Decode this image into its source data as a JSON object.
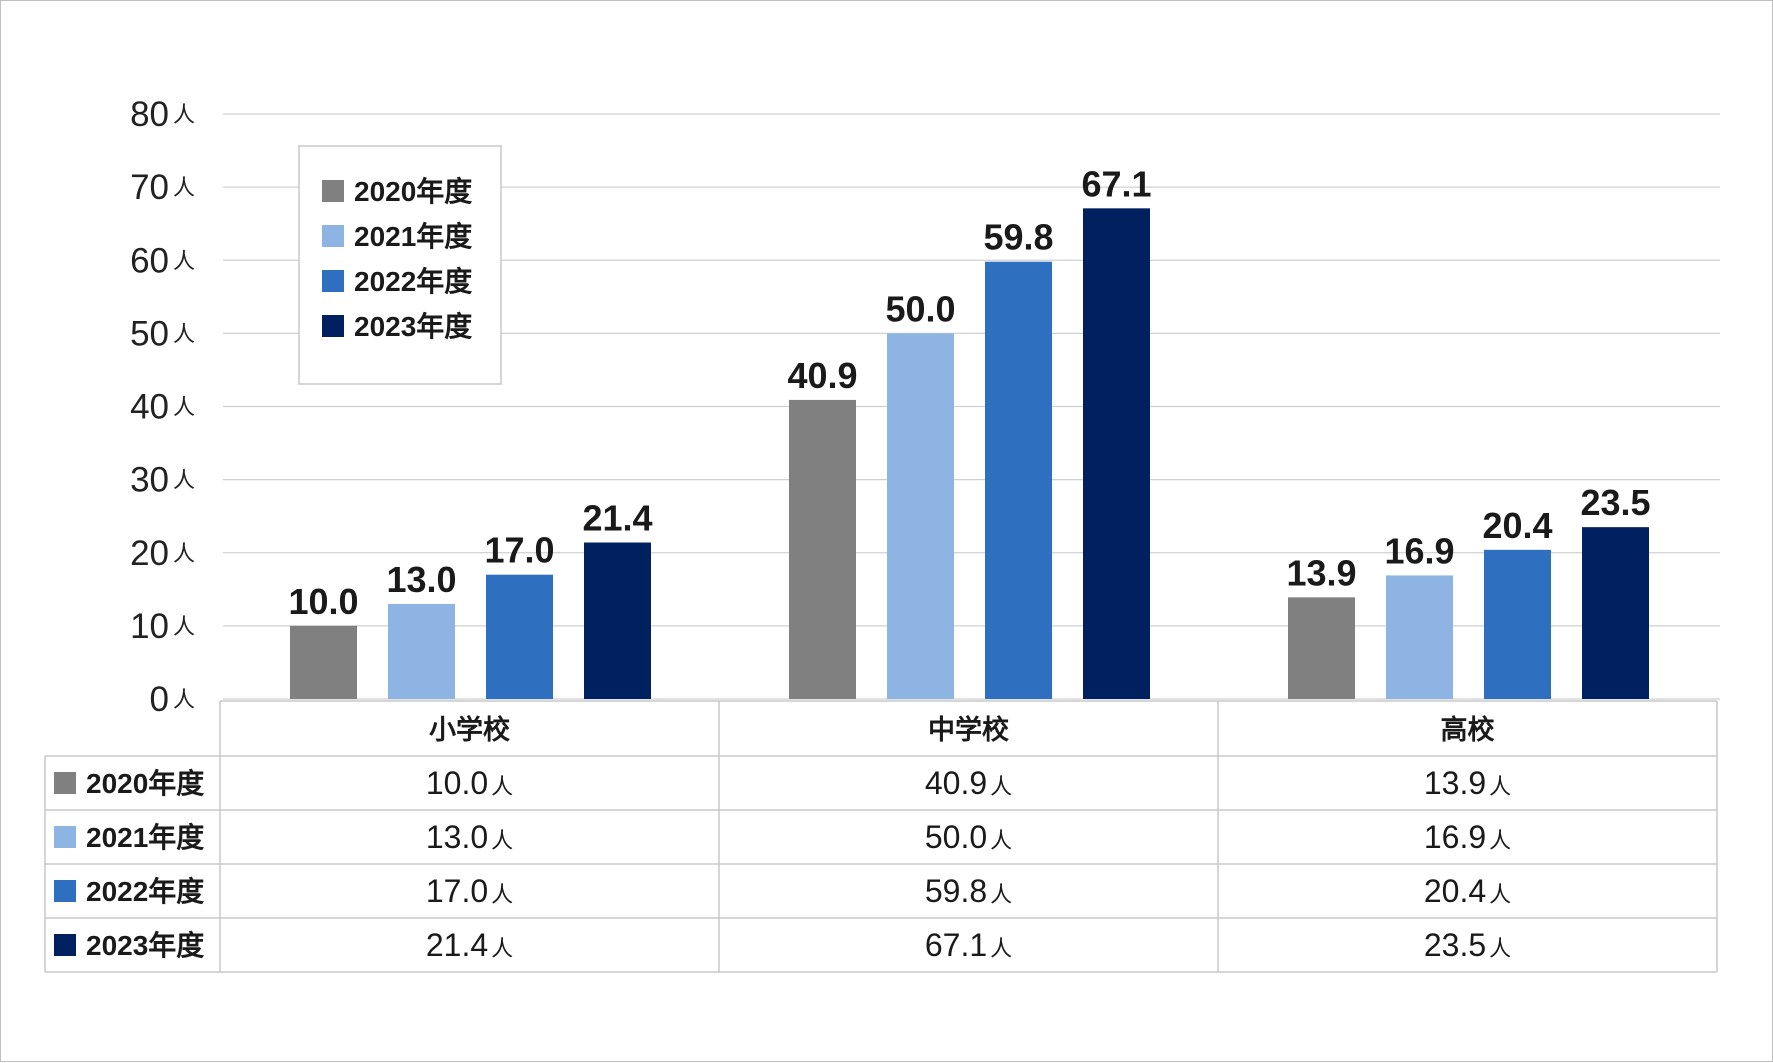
{
  "chart_data": {
    "type": "bar",
    "categories": [
      "小学校",
      "中学校",
      "高校"
    ],
    "series": [
      {
        "name": "2020年度",
        "color": "#808080",
        "values": [
          10.0,
          40.9,
          13.9
        ],
        "labels": [
          "10.0",
          "40.9",
          "13.9"
        ]
      },
      {
        "name": "2021年度",
        "color": "#8eb4e3",
        "values": [
          13.0,
          50.0,
          16.9
        ],
        "labels": [
          "13.0",
          "50.0",
          "16.9"
        ]
      },
      {
        "name": "2022年度",
        "color": "#2e6fc0",
        "values": [
          17.0,
          59.8,
          20.4
        ],
        "labels": [
          "17.0",
          "59.8",
          "20.4"
        ]
      },
      {
        "name": "2023年度",
        "color": "#002060",
        "values": [
          21.4,
          67.1,
          23.5
        ],
        "labels": [
          "21.4",
          "67.1",
          "23.5"
        ]
      }
    ],
    "y_unit": "人",
    "yticks": [
      "0",
      "10",
      "20",
      "30",
      "40",
      "50",
      "60",
      "70",
      "80"
    ],
    "ylim": [
      0,
      80
    ],
    "grid": true,
    "legend_position": "top-left",
    "data_table": true
  }
}
